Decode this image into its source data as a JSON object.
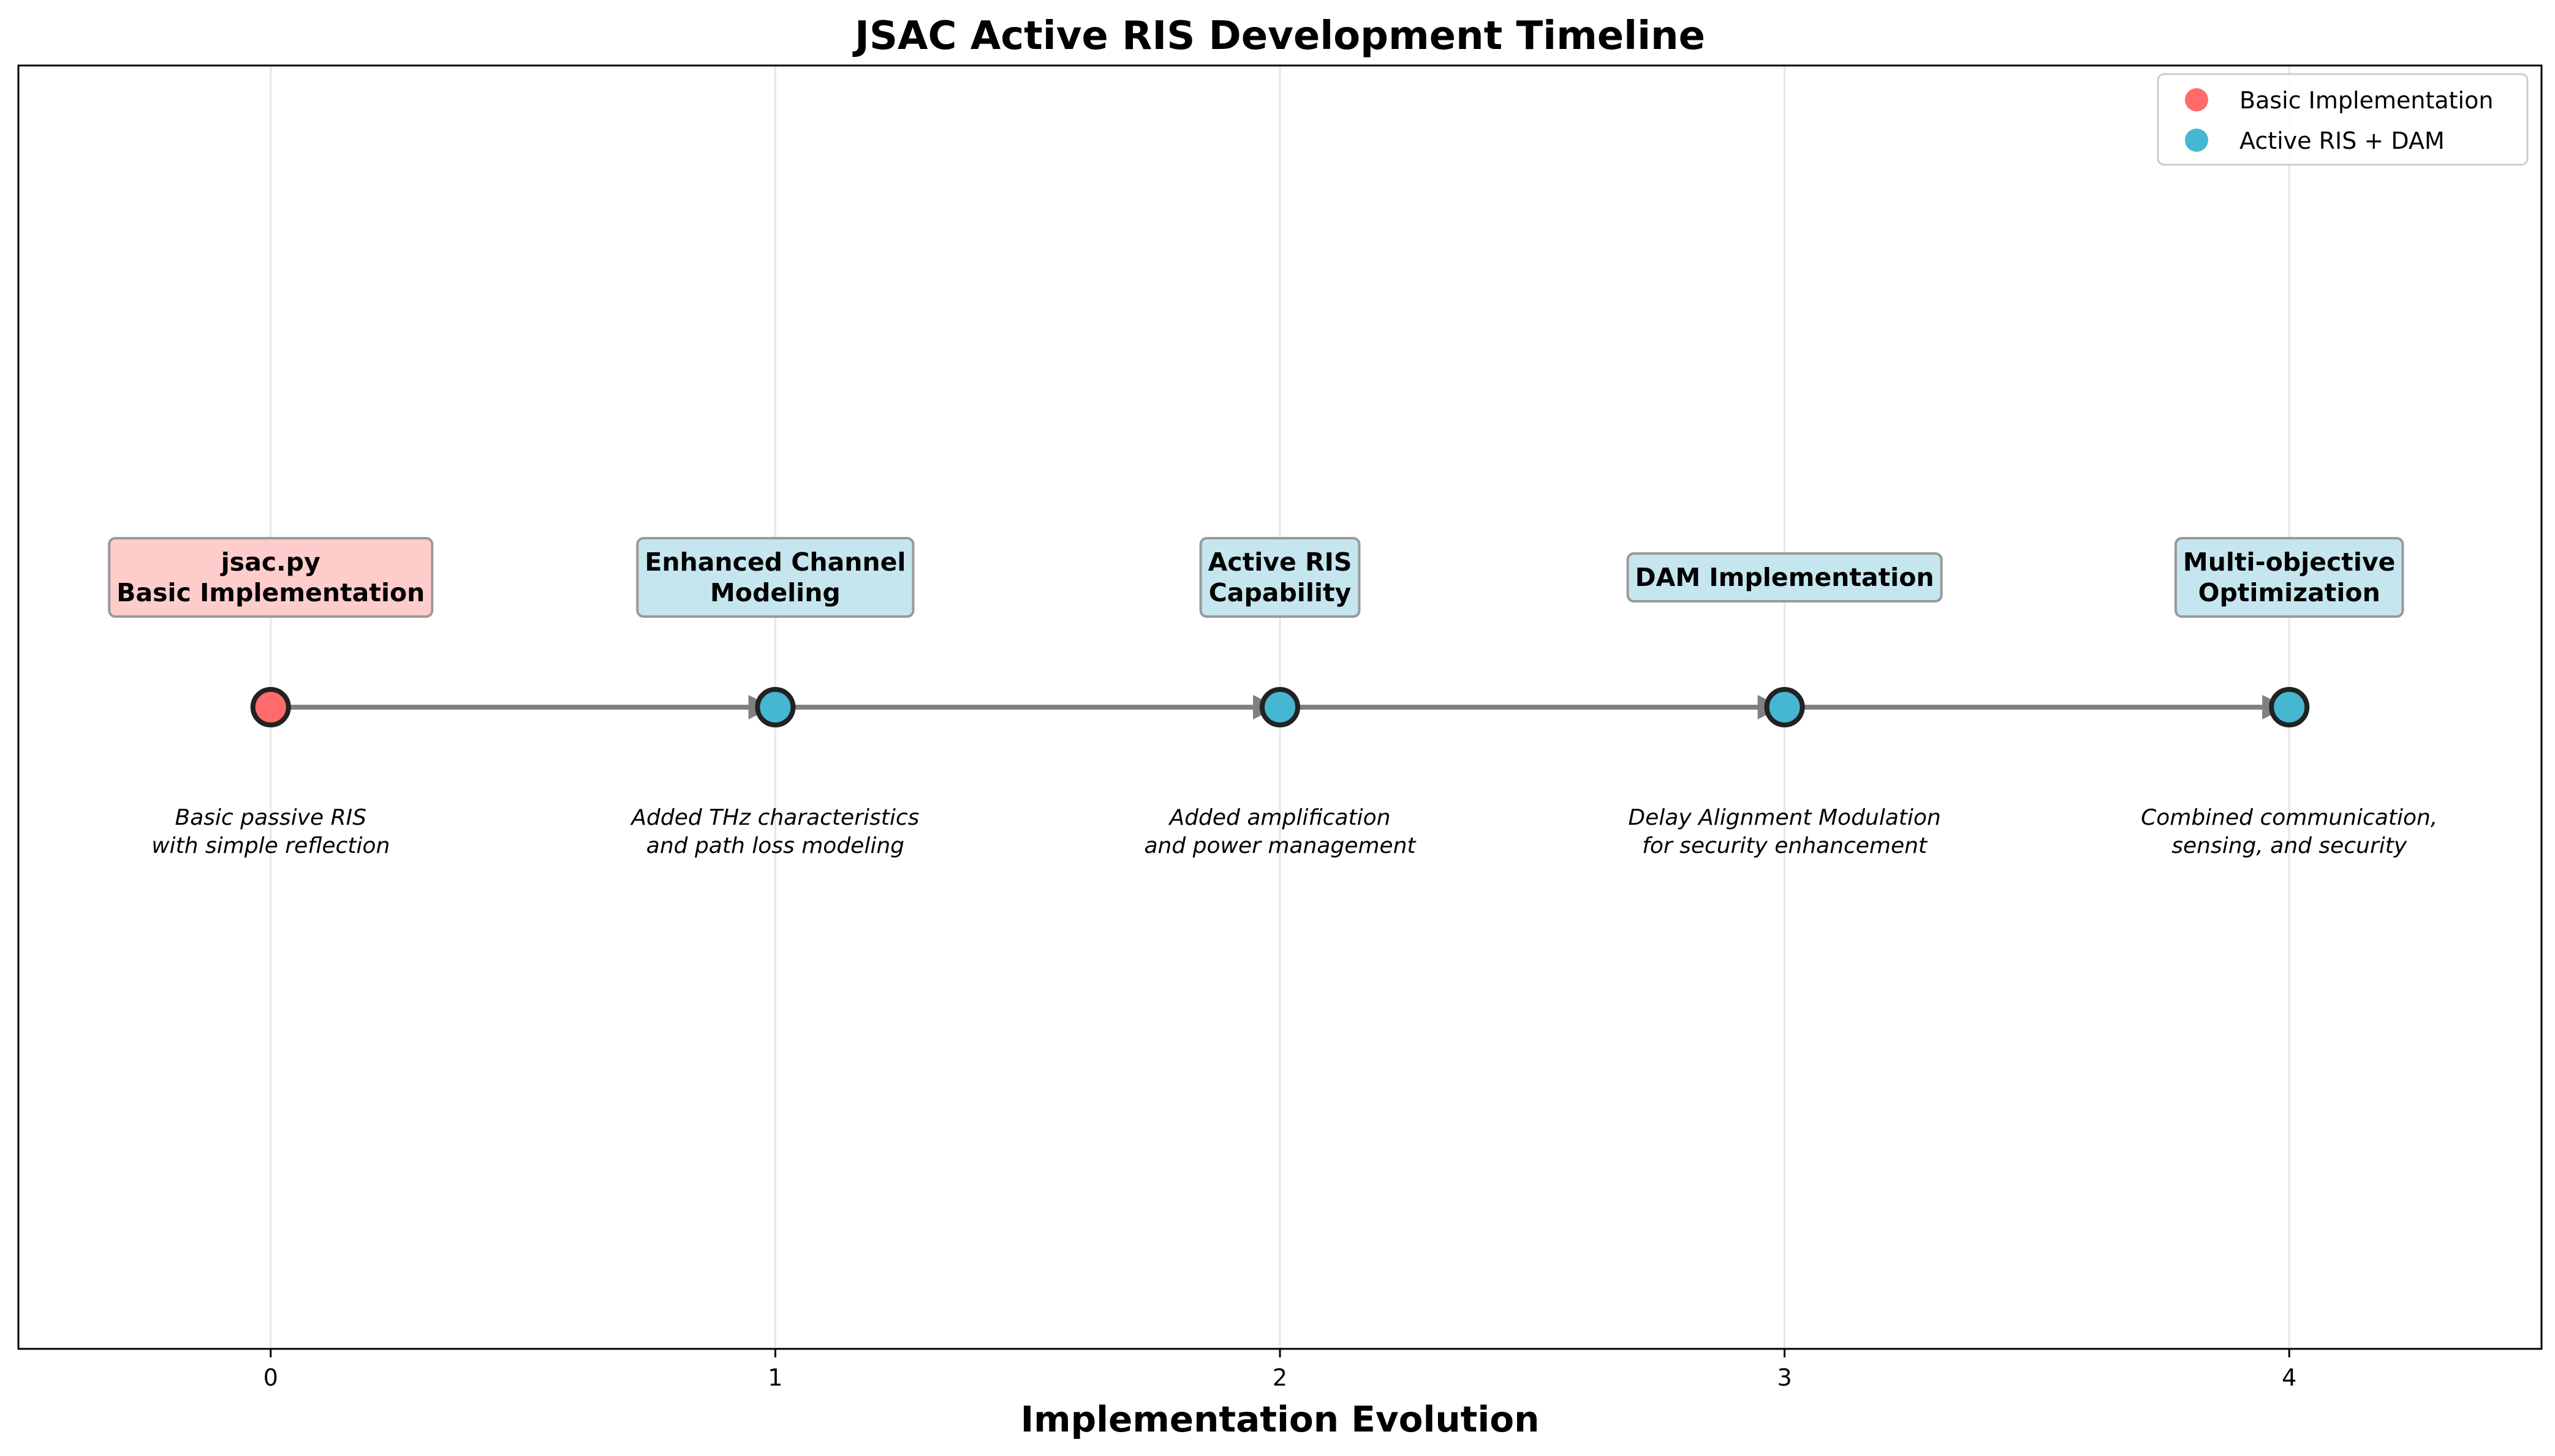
{
  "chart_data": {
    "type": "scatter",
    "title": "JSAC Active RIS Development Timeline",
    "xlabel": "Implementation Evolution",
    "ylabel": "",
    "xlim": [
      -0.5,
      4.5
    ],
    "ylim": [
      -1,
      1
    ],
    "xticks": [
      0,
      1,
      2,
      3,
      4
    ],
    "grid": "x-only",
    "legend_position": "top-right",
    "legend": [
      {
        "label": "Basic Implementation",
        "color": "#ff6b6b"
      },
      {
        "label": "Active RIS + DAM",
        "color": "#45b7d1"
      }
    ],
    "points": [
      {
        "x": 0,
        "y": 0,
        "title": [
          "jsac.py",
          "Basic Implementation"
        ],
        "description": [
          "Basic passive RIS",
          "with simple reflection"
        ],
        "kind": "basic"
      },
      {
        "x": 1,
        "y": 0,
        "title": [
          "Enhanced Channel",
          "Modeling"
        ],
        "description": [
          "Added THz characteristics",
          "and path loss modeling"
        ],
        "kind": "active"
      },
      {
        "x": 2,
        "y": 0,
        "title": [
          "Active RIS",
          "Capability"
        ],
        "description": [
          "Added amplification",
          "and power management"
        ],
        "kind": "active"
      },
      {
        "x": 3,
        "y": 0,
        "title": [
          "DAM Implementation"
        ],
        "description": [
          "Delay Alignment Modulation",
          "for security enhancement"
        ],
        "kind": "active"
      },
      {
        "x": 4,
        "y": 0,
        "title": [
          "Multi-objective",
          "Optimization"
        ],
        "description": [
          "Combined communication,",
          "sensing, and security"
        ],
        "kind": "active"
      }
    ],
    "colors": {
      "basic_marker": "#ff6b6b",
      "active_marker": "#45b7d1",
      "basic_box": "#ffcccc",
      "active_box": "#c5e6ef",
      "connector": "#808080"
    }
  }
}
